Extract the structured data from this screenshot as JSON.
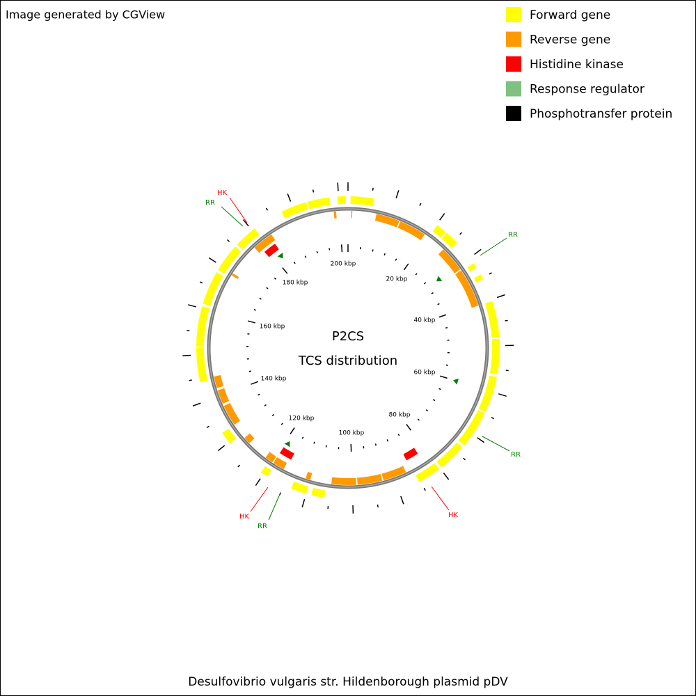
{
  "header": {
    "title": "Image generated by CGView"
  },
  "legend": [
    {
      "label": "Forward gene",
      "color": "#ffff00"
    },
    {
      "label": "Reverse gene",
      "color": "#ff9900"
    },
    {
      "label": "Histidine kinase",
      "color": "#ff0000"
    },
    {
      "label": "Response regulator",
      "color": "#80c080"
    },
    {
      "label": "Phosphotransfer protein",
      "color": "#000000"
    }
  ],
  "map": {
    "center_lines": [
      "P2CS",
      "TCS distribution"
    ],
    "tick_labels": [
      "200 kbp",
      "20 kbp",
      "40 kbp",
      "60 kbp",
      "80 kbp",
      "100 kbp",
      "120 kbp",
      "140 kbp",
      "160 kbp",
      "180 kbp"
    ],
    "annotations": [
      "HK",
      "RR",
      "RR",
      "RR",
      "HK",
      "HK",
      "RR"
    ]
  },
  "footer": {
    "caption": "Desulfovibrio vulgaris str. Hildenborough plasmid pDV"
  }
}
